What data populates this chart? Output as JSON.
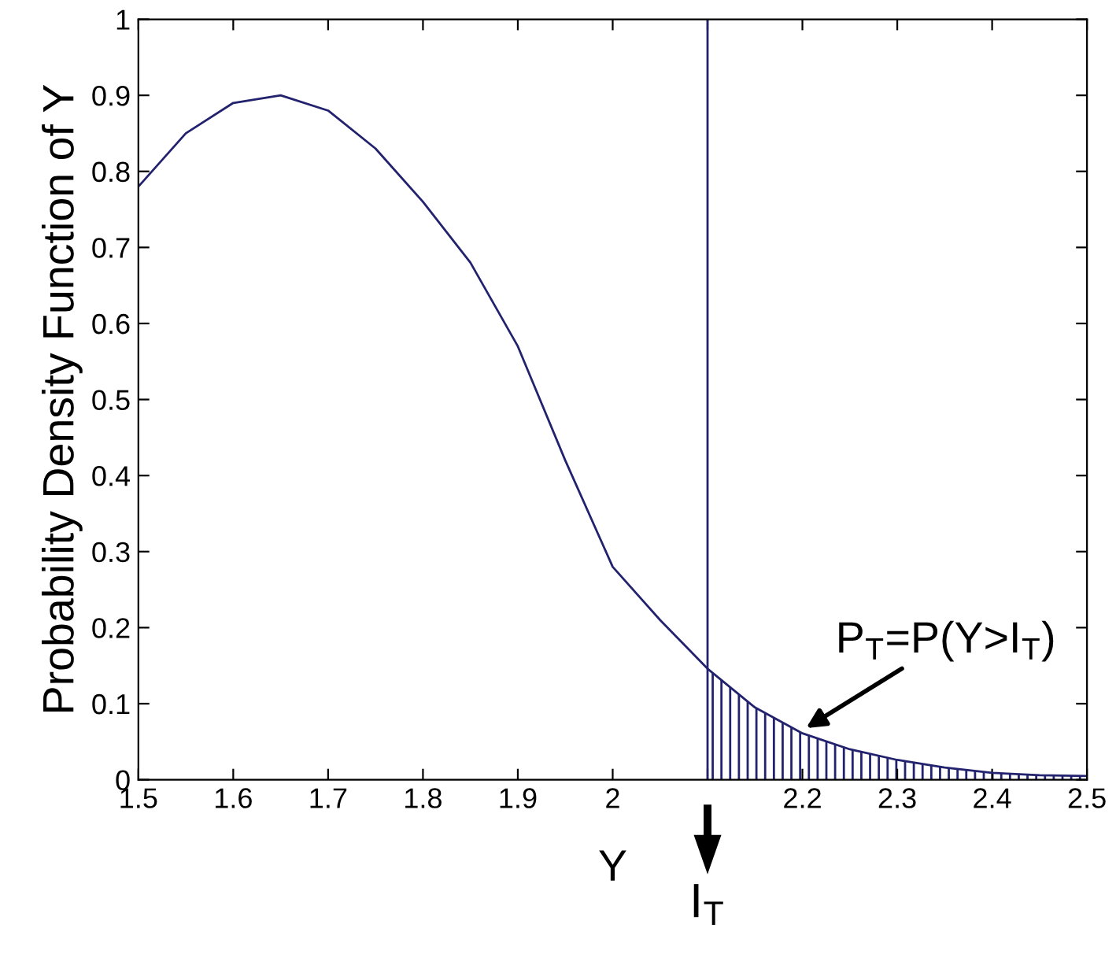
{
  "chart_data": {
    "type": "line",
    "xlabel": "Y",
    "ylabel": "Probability Density Function of Y",
    "xlim": [
      1.5,
      2.5
    ],
    "ylim": [
      0,
      1
    ],
    "xticks": [
      1.5,
      1.6,
      1.7,
      1.8,
      1.9,
      2,
      {
        "value": 2.1,
        "label": null
      },
      2.2,
      2.3,
      2.4,
      2.5
    ],
    "yticks": [
      0,
      0.1,
      0.2,
      0.3,
      0.4,
      0.5,
      0.6,
      0.7,
      0.8,
      0.9,
      1
    ],
    "grid": false,
    "marker": "none",
    "line_style": "solid",
    "series": [
      {
        "color": "#22226e",
        "x": [
          1.5,
          1.55,
          1.6,
          1.65,
          1.7,
          1.75,
          1.8,
          1.85,
          1.9,
          1.95,
          2.0,
          2.05,
          2.1,
          2.15,
          2.2,
          2.25,
          2.3,
          2.35,
          2.4,
          2.45,
          2.5
        ],
        "values": [
          0.78,
          0.85,
          0.89,
          0.9,
          0.88,
          0.83,
          0.76,
          0.68,
          0.57,
          0.42,
          0.28,
          0.21,
          0.146,
          0.095,
          0.061,
          0.04,
          0.026,
          0.016,
          0.009,
          0.006,
          0.005
        ]
      },
      {
        "type": "area",
        "color": "#22226e",
        "x": [
          2.1,
          2.15,
          2.2,
          2.25,
          2.3,
          2.35,
          2.4,
          2.45,
          2.5
        ],
        "values": [
          0.146,
          0.095,
          0.061,
          0.04,
          0.026,
          0.016,
          0.009,
          0.006,
          0.005
        ]
      }
    ],
    "ref_lines": [
      {
        "axis": "x",
        "value": 2.1,
        "label": null,
        "color": "#22226e"
      }
    ],
    "annotations": [
      {
        "text": "P$_{T}$=P(Y>I$_{T}$)",
        "x": 2.2,
        "y": 0.065
      },
      "I$_{T}$"
    ]
  }
}
